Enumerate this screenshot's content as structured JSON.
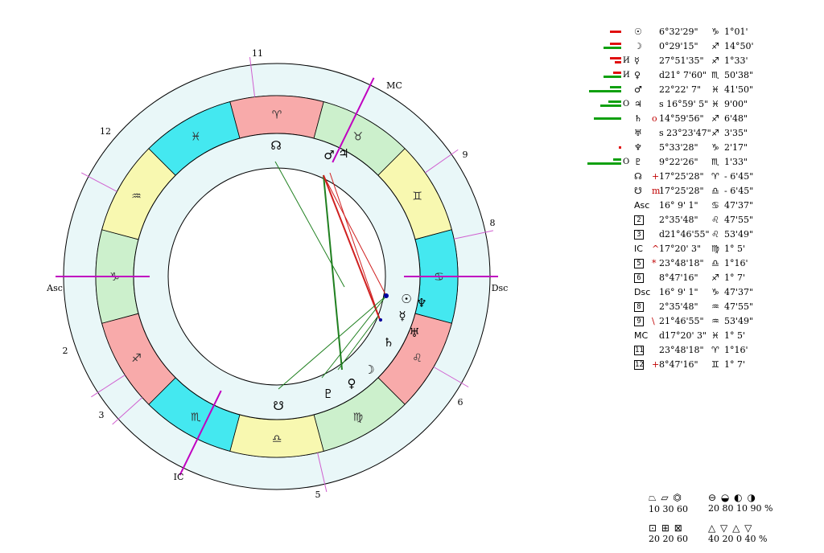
{
  "colors": {
    "outer_ring": "#e9f7f8",
    "ring_stroke": "#000000",
    "axis": "#c000c0",
    "fire": "#f8aaaa",
    "earth": "#ccf0cc",
    "air": "#f8f8b0",
    "water": "#44e8f0",
    "green_aspect": "#208020",
    "red_aspect": "#d02020",
    "blue": "#0000a0"
  },
  "chart": {
    "angle_labels": [
      "Asc",
      "MC",
      "Dsc",
      "IC"
    ],
    "house_labels": [
      "2",
      "3",
      "5",
      "6",
      "8",
      "9",
      "11",
      "12"
    ],
    "zodiac": [
      {
        "sign": "♈",
        "element": "fire"
      },
      {
        "sign": "♉",
        "element": "earth"
      },
      {
        "sign": "♊",
        "element": "air"
      },
      {
        "sign": "♋",
        "element": "water"
      },
      {
        "sign": "♌",
        "element": "fire"
      },
      {
        "sign": "♍",
        "element": "earth"
      },
      {
        "sign": "♎",
        "element": "air"
      },
      {
        "sign": "♏",
        "element": "water"
      },
      {
        "sign": "♐",
        "element": "fire"
      },
      {
        "sign": "♑",
        "element": "earth"
      },
      {
        "sign": "♒",
        "element": "air"
      },
      {
        "sign": "♓",
        "element": "water"
      }
    ],
    "planet_glyphs": [
      "☊",
      "♂",
      "♃",
      "☉",
      "♆",
      "☿",
      "♅",
      "♄",
      "☽",
      "♀",
      "♇",
      "☋"
    ]
  },
  "table": [
    {
      "sym": "☉",
      "pre": "",
      "pos": "6°32'29\"",
      "sign": "♑",
      "orb": "1°01'",
      "mark": "",
      "bars": [
        {
          "w": 14,
          "c": "red"
        }
      ]
    },
    {
      "sym": "☽",
      "pre": "",
      "pos": "0°29'15\"",
      "sign": "♐",
      "orb": "14°50'",
      "mark": "",
      "bars": [
        {
          "w": 14,
          "c": "red"
        },
        {
          "w": 22,
          "c": "green"
        }
      ]
    },
    {
      "sym": "☿",
      "pre": "",
      "pos": "27°51'35\"",
      "sign": "♐",
      "orb": "1°33'",
      "mark": "И",
      "bars": [
        {
          "w": 14,
          "c": "red"
        },
        {
          "w": 8,
          "c": "red"
        }
      ]
    },
    {
      "sym": "♀",
      "pre": "",
      "pos": "d21° 7'60\"",
      "sign": "♏",
      "orb": "50'38\"",
      "mark": "И",
      "bars": [
        {
          "w": 10,
          "c": "red"
        },
        {
          "w": 22,
          "c": "green"
        }
      ]
    },
    {
      "sym": "♂",
      "pre": "",
      "pos": "22°22' 7\"",
      "sign": "♓",
      "orb": "41'50\"",
      "mark": "",
      "bars": [
        {
          "w": 14,
          "c": "green"
        },
        {
          "w": 40,
          "c": "green"
        }
      ]
    },
    {
      "sym": "♃",
      "pre": "",
      "pos": "s 16°59' 5\"",
      "sign": "♓",
      "orb": "9'00\"",
      "mark": "O",
      "bars": [
        {
          "w": 16,
          "c": "green"
        },
        {
          "w": 26,
          "c": "green"
        }
      ]
    },
    {
      "sym": "♄",
      "pre": "o",
      "pos": "14°59'56\"",
      "sign": "♐",
      "orb": "6'48\"",
      "mark": "",
      "bars": [
        {
          "w": 34,
          "c": "green"
        }
      ]
    },
    {
      "sym": "♅",
      "pre": "",
      "pos": "s 23°23'47\"",
      "sign": "♐",
      "orb": "3'35\"",
      "mark": "",
      "bars": []
    },
    {
      "sym": "♆",
      "pre": "",
      "pos": "5°33'28\"",
      "sign": "♑",
      "orb": "2'17\"",
      "mark": "",
      "bars": [
        {
          "w": 3,
          "c": "red"
        }
      ]
    },
    {
      "sym": "♇",
      "pre": "",
      "pos": "9°22'26\"",
      "sign": "♏",
      "orb": "1'33\"",
      "mark": "O",
      "bars": [
        {
          "w": 10,
          "c": "green"
        },
        {
          "w": 42,
          "c": "green"
        }
      ]
    },
    {
      "sym": "☊",
      "pre": "+",
      "pos": "17°25'28\"",
      "sign": "♈",
      "orb": "- 6'45\"",
      "mark": "",
      "bars": []
    },
    {
      "sym": "☋",
      "pre": "m",
      "pos": "17°25'28\"",
      "sign": "♎",
      "orb": "- 6'45\"",
      "mark": "",
      "bars": []
    },
    {
      "sym": "Asc",
      "pre": "",
      "pos": "16° 9' 1\"",
      "sign": "♋",
      "orb": "47'37\"",
      "mark": "",
      "bars": []
    },
    {
      "sym": "2",
      "pre": "",
      "pos": "2°35'48\"",
      "sign": "♌",
      "orb": "47'55\"",
      "mark": "",
      "bars": [],
      "boxed": true
    },
    {
      "sym": "3",
      "pre": "",
      "pos": "d21°46'55\"",
      "sign": "♌",
      "orb": "53'49\"",
      "mark": "",
      "bars": [],
      "boxed": true
    },
    {
      "sym": "IC",
      "pre": "^",
      "pos": "17°20' 3\"",
      "sign": "♍",
      "orb": "1° 5'",
      "mark": "",
      "bars": []
    },
    {
      "sym": "5",
      "pre": "*",
      "pos": "23°48'18\"",
      "sign": "♎",
      "orb": "1°16'",
      "mark": "",
      "bars": [],
      "boxed": true
    },
    {
      "sym": "6",
      "pre": "",
      "pos": "8°47'16\"",
      "sign": "♐",
      "orb": "1° 7'",
      "mark": "",
      "bars": [],
      "boxed": true
    },
    {
      "sym": "Dsc",
      "pre": "",
      "pos": "16° 9' 1\"",
      "sign": "♑",
      "orb": "47'37\"",
      "mark": "",
      "bars": []
    },
    {
      "sym": "8",
      "pre": "",
      "pos": "2°35'48\"",
      "sign": "♒",
      "orb": "47'55\"",
      "mark": "",
      "bars": [],
      "boxed": true
    },
    {
      "sym": "9",
      "pre": "\\",
      "pos": "21°46'55\"",
      "sign": "♒",
      "orb": "53'49\"",
      "mark": "",
      "bars": [],
      "boxed": true
    },
    {
      "sym": "MC",
      "pre": "",
      "pos": "d17°20' 3\"",
      "sign": "♓",
      "orb": "1° 5'",
      "mark": "",
      "bars": []
    },
    {
      "sym": "11",
      "pre": "",
      "pos": "23°48'18\"",
      "sign": "♈",
      "orb": "1°16'",
      "mark": "",
      "bars": [],
      "boxed": true
    },
    {
      "sym": "12",
      "pre": "+",
      "pos": "8°47'16\"",
      "sign": "♊",
      "orb": "1° 7'",
      "mark": "",
      "bars": [],
      "boxed": true
    }
  ],
  "legend": {
    "row1_left_symbols": "⏢ ⏥ ⏣",
    "row1_left_values": "10 30 60",
    "row1_right_symbols": "⊖ ◒ ◐ ◑",
    "row1_right_values": "20 80 10 90 %",
    "row2_left_symbols": "⊡ ⊞ ⊠",
    "row2_left_values": "20 20 60",
    "row2_right_symbols": "△ ▽ △ ▽",
    "row2_right_values": "40 20 0 40 %"
  }
}
